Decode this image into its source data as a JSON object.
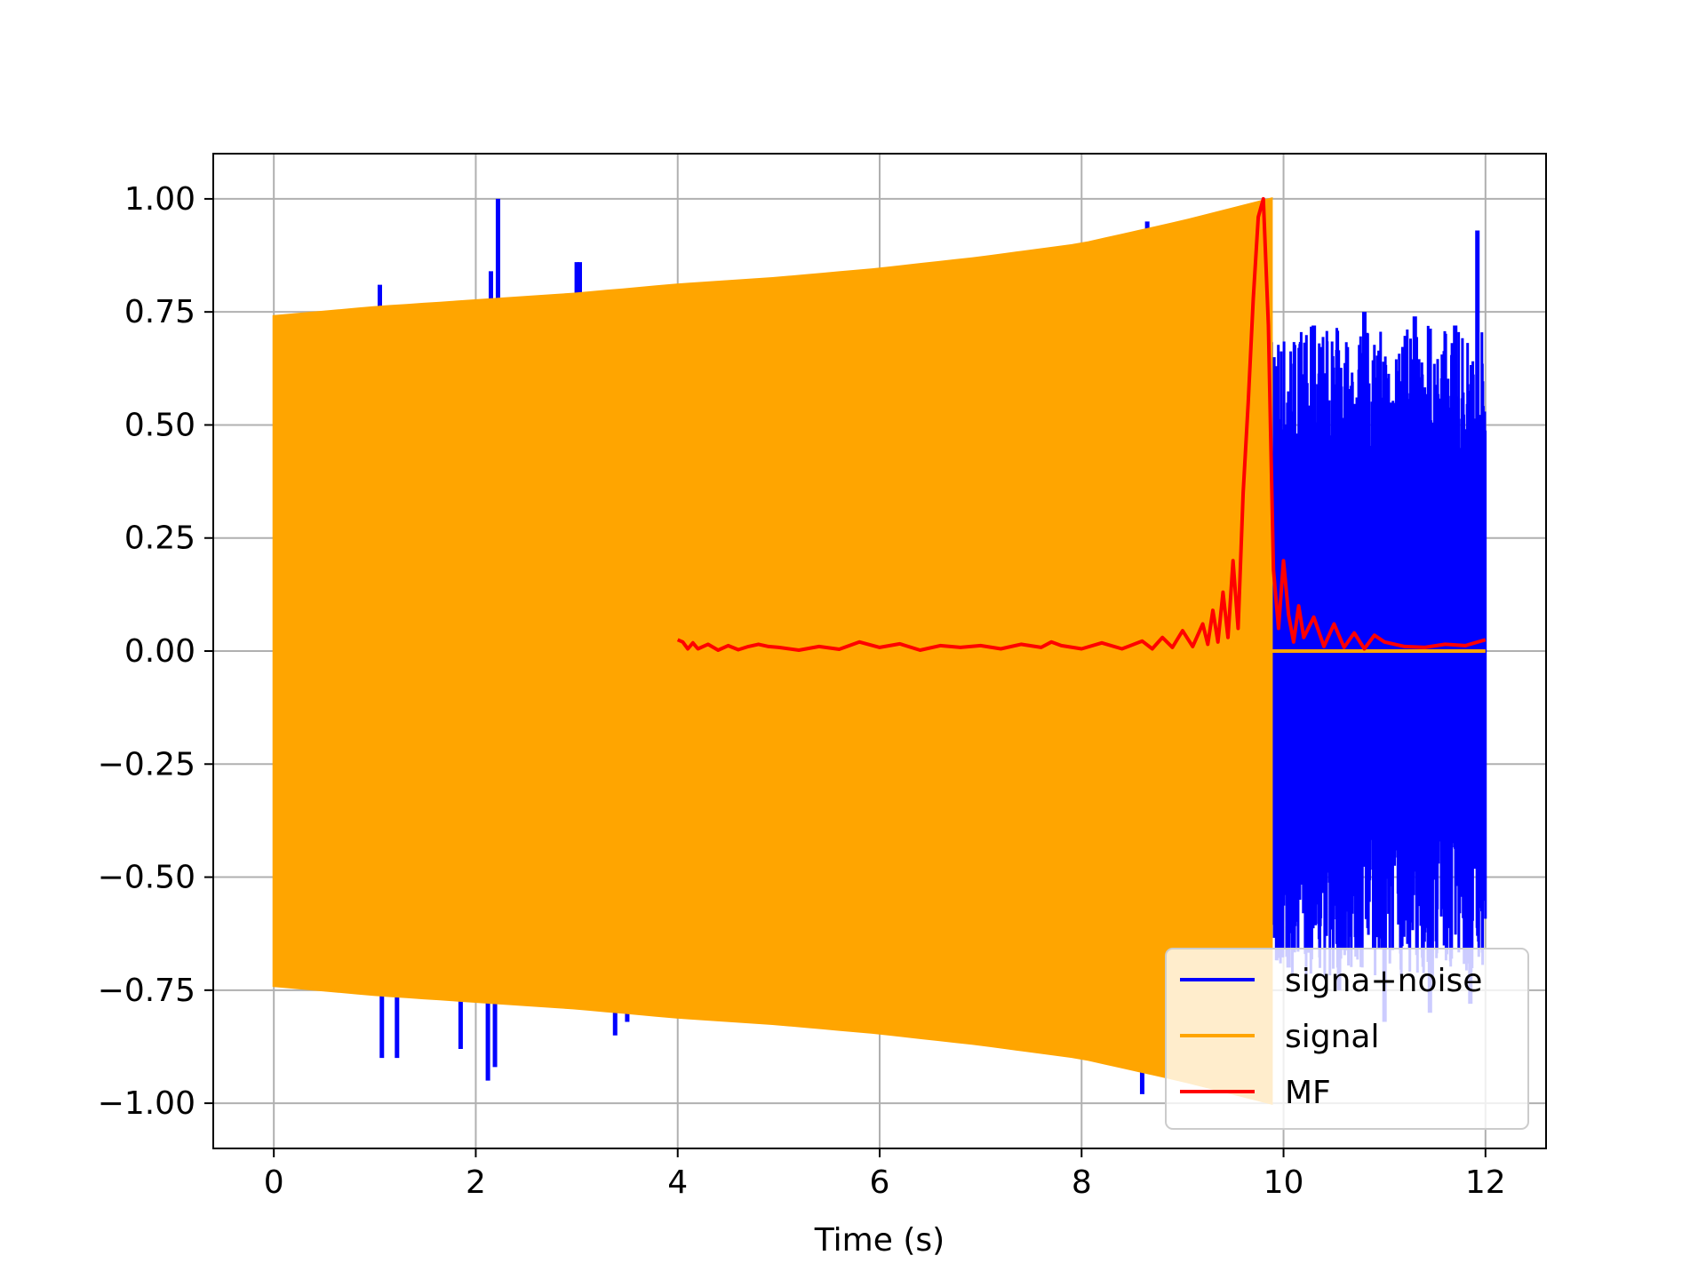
{
  "chart_data": {
    "type": "line",
    "title": "",
    "xlabel": "Time (s)",
    "ylabel": "",
    "xlim": [
      -0.6,
      12.6
    ],
    "ylim": [
      -1.1,
      1.1
    ],
    "xticks": [
      0,
      2,
      4,
      6,
      8,
      10,
      12
    ],
    "xtick_labels": [
      "0",
      "2",
      "4",
      "6",
      "8",
      "10",
      "12"
    ],
    "yticks": [
      1.0,
      0.75,
      0.5,
      0.25,
      0.0,
      -0.25,
      -0.5,
      -0.75,
      -1.0
    ],
    "ytick_labels": [
      "1.00",
      "0.75",
      "0.50",
      "0.25",
      "0.00",
      "−0.25",
      "−0.50",
      "−0.75",
      "−1.00"
    ],
    "grid": true,
    "legend_position": "lower right",
    "series": [
      {
        "name": "signa+noise",
        "color": "#0000ff",
        "style": "filled-oscillation",
        "envelope_x": [
          0,
          1,
          2,
          3,
          4,
          5,
          6,
          7,
          8,
          9,
          9.88
        ],
        "envelope_y": [
          0.74,
          0.76,
          0.775,
          0.79,
          0.81,
          0.825,
          0.845,
          0.87,
          0.9,
          0.95,
          1.0
        ],
        "noise_region_x": [
          9.88,
          12.0
        ],
        "noise_amplitude": 0.72,
        "spike_times": [
          1.05,
          1.07,
          1.22,
          1.85,
          2.12,
          2.15,
          2.19,
          2.22,
          2.95,
          3.0,
          3.03,
          3.38,
          3.5,
          3.62,
          4.2,
          4.25,
          8.6,
          8.65,
          9.9,
          10.05,
          10.3,
          10.55,
          10.8,
          11.0,
          11.3,
          11.45,
          11.7,
          11.85,
          11.92
        ],
        "spike_values": [
          0.81,
          -0.9,
          -0.9,
          -0.88,
          -0.95,
          0.84,
          -0.92,
          1.0,
          0.78,
          0.86,
          0.86,
          -0.85,
          -0.82,
          0.7,
          0.8,
          0.78,
          -0.98,
          0.95,
          0.65,
          -0.7,
          0.72,
          -0.75,
          0.75,
          -0.82,
          0.74,
          -0.8,
          0.72,
          -0.78,
          0.93
        ]
      },
      {
        "name": "signal",
        "color": "#ffa500",
        "style": "filled-oscillation",
        "envelope_x": [
          0,
          1,
          2,
          3,
          4,
          5,
          6,
          7,
          8,
          9,
          9.88
        ],
        "envelope_y": [
          0.74,
          0.76,
          0.775,
          0.79,
          0.81,
          0.825,
          0.845,
          0.87,
          0.9,
          0.95,
          1.0
        ],
        "zero_after": 9.88
      },
      {
        "name": "MF",
        "color": "#ff0000",
        "style": "line",
        "x": [
          4.0,
          4.05,
          4.1,
          4.15,
          4.2,
          4.3,
          4.4,
          4.5,
          4.6,
          4.7,
          4.8,
          4.9,
          5.0,
          5.2,
          5.4,
          5.6,
          5.8,
          6.0,
          6.2,
          6.4,
          6.6,
          6.8,
          7.0,
          7.2,
          7.4,
          7.6,
          7.7,
          7.8,
          8.0,
          8.2,
          8.4,
          8.6,
          8.7,
          8.8,
          8.9,
          9.0,
          9.1,
          9.2,
          9.25,
          9.3,
          9.35,
          9.4,
          9.45,
          9.5,
          9.55,
          9.6,
          9.65,
          9.7,
          9.75,
          9.8,
          9.85,
          9.9,
          9.95,
          10.0,
          10.05,
          10.1,
          10.15,
          10.2,
          10.3,
          10.4,
          10.5,
          10.6,
          10.7,
          10.8,
          10.9,
          11.0,
          11.2,
          11.4,
          11.6,
          11.8,
          12.0
        ],
        "y": [
          0.025,
          0.02,
          0.005,
          0.018,
          0.005,
          0.015,
          0.002,
          0.012,
          0.003,
          0.01,
          0.015,
          0.01,
          0.008,
          0.002,
          0.01,
          0.004,
          0.02,
          0.008,
          0.016,
          0.002,
          0.012,
          0.008,
          0.012,
          0.005,
          0.015,
          0.008,
          0.02,
          0.012,
          0.005,
          0.018,
          0.005,
          0.022,
          0.005,
          0.03,
          0.008,
          0.045,
          0.01,
          0.06,
          0.015,
          0.09,
          0.02,
          0.13,
          0.03,
          0.2,
          0.05,
          0.35,
          0.55,
          0.78,
          0.96,
          1.0,
          0.72,
          0.18,
          0.05,
          0.2,
          0.08,
          0.02,
          0.1,
          0.03,
          0.075,
          0.01,
          0.06,
          0.008,
          0.04,
          0.005,
          0.035,
          0.02,
          0.01,
          0.008,
          0.015,
          0.012,
          0.025
        ]
      }
    ]
  }
}
